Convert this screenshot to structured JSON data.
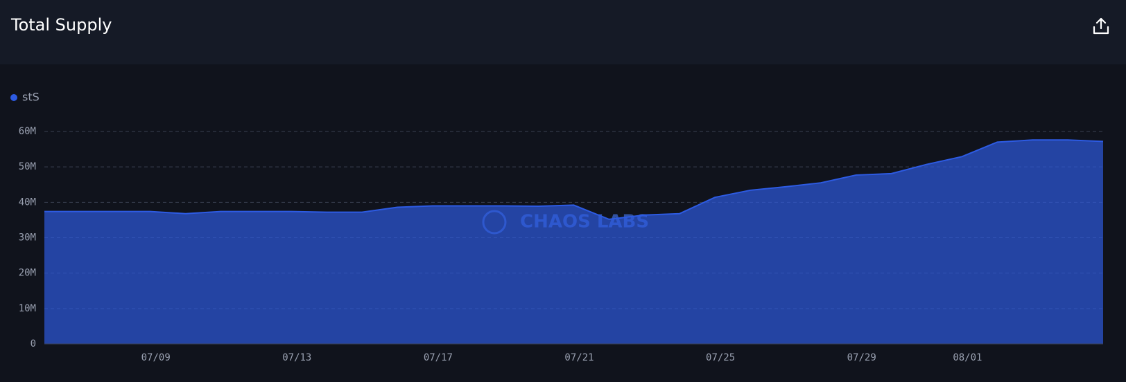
{
  "chart_data": {
    "type": "area",
    "title": "Total Supply",
    "watermark": "CHAOS LABS",
    "categories": [
      null,
      null,
      null,
      "07/09",
      null,
      null,
      null,
      "07/13",
      null,
      null,
      null,
      "07/17",
      null,
      null,
      null,
      "07/21",
      null,
      null,
      null,
      "07/25",
      null,
      null,
      null,
      "07/29",
      null,
      null,
      "08/01",
      null,
      null,
      null,
      null
    ],
    "series": [
      {
        "name": "stS",
        "color": "#2d5be3",
        "values": [
          37400000,
          37400000,
          37400000,
          37400000,
          36800000,
          37400000,
          37400000,
          37400000,
          37200000,
          37200000,
          38600000,
          39000000,
          39000000,
          39000000,
          38900000,
          39200000,
          35200000,
          36400000,
          36800000,
          41400000,
          43400000,
          44400000,
          45500000,
          47700000,
          48100000,
          50700000,
          52900000,
          57000000,
          57600000,
          57600000,
          57200000
        ]
      }
    ],
    "ylim": [
      0,
      60000000
    ],
    "yticks": [
      0,
      {
        "value": 10000000,
        "label": "10M"
      },
      {
        "value": 20000000,
        "label": "20M"
      },
      {
        "value": 30000000,
        "label": "30M"
      },
      {
        "value": 40000000,
        "label": "40M"
      },
      {
        "value": 50000000,
        "label": "50M"
      },
      {
        "value": 60000000,
        "label": "60M"
      }
    ],
    "grid": true
  }
}
